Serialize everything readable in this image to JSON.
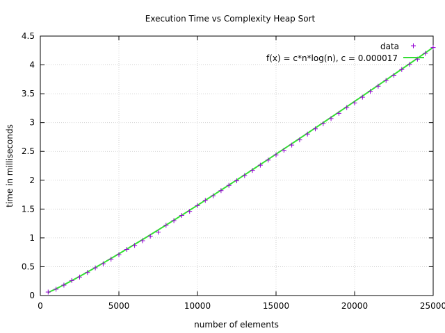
{
  "chart_data": {
    "type": "scatter",
    "title": "Execution Time vs Complexity Heap Sort",
    "xlabel": "number of elements",
    "ylabel": "time in milliseconds",
    "xlim": [
      0,
      25000
    ],
    "ylim": [
      0,
      4.5
    ],
    "xticks": [
      "0",
      "5000",
      "10000",
      "15000",
      "20000",
      "25000"
    ],
    "yticks": [
      "0",
      "0.5",
      "1",
      "1.5",
      "2",
      "2.5",
      "3",
      "3.5",
      "4",
      "4.5"
    ],
    "grid": true,
    "legend_position": "top-right",
    "series": [
      {
        "name": "data",
        "style": "points",
        "marker": "+",
        "color": "#9400d3",
        "x": [
          500,
          1000,
          1500,
          2000,
          2500,
          3000,
          3500,
          4000,
          4500,
          5000,
          5500,
          6000,
          6500,
          7000,
          7500,
          8000,
          8500,
          9000,
          9500,
          10000,
          10500,
          11000,
          11500,
          12000,
          12500,
          13000,
          13500,
          14000,
          14500,
          15000,
          15500,
          16000,
          16500,
          17000,
          17500,
          18000,
          18500,
          19000,
          19500,
          20000,
          20500,
          21000,
          21500,
          22000,
          22500,
          23000,
          23500,
          24000,
          24500,
          25000
        ],
        "y": [
          0.06,
          0.11,
          0.18,
          0.26,
          0.32,
          0.4,
          0.48,
          0.55,
          0.63,
          0.71,
          0.8,
          0.87,
          0.95,
          1.03,
          1.1,
          1.22,
          1.3,
          1.39,
          1.46,
          1.56,
          1.65,
          1.73,
          1.82,
          1.91,
          1.99,
          2.08,
          2.17,
          2.26,
          2.35,
          2.44,
          2.52,
          2.61,
          2.7,
          2.8,
          2.89,
          2.98,
          3.07,
          3.16,
          3.26,
          3.34,
          3.44,
          3.54,
          3.63,
          3.73,
          3.82,
          3.92,
          4.01,
          4.1,
          4.2,
          4.3
        ]
      },
      {
        "name": "f(x) = c*n*log(n), c = 0.000017",
        "style": "line",
        "color": "#33dd33",
        "c": 1.7e-05
      }
    ]
  }
}
